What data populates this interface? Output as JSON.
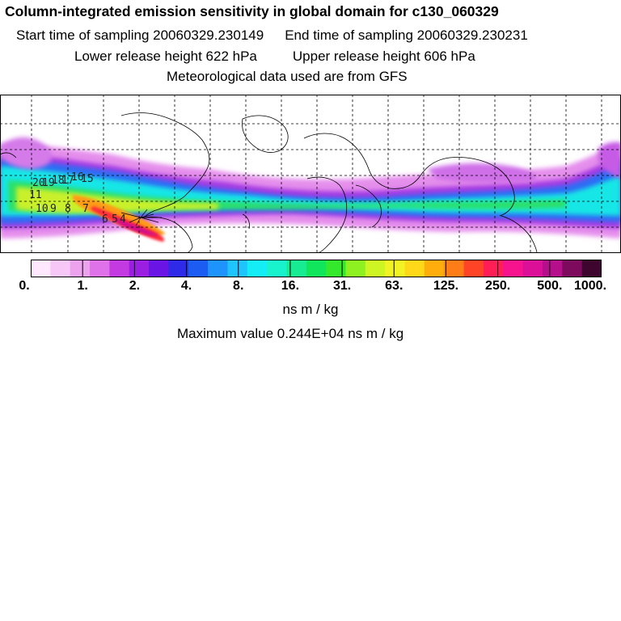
{
  "header": {
    "title": "Column-integrated emission sensitivity in global domain for c130_060329",
    "start_label": "Start time of sampling 20060329.230149",
    "end_label": "End time of sampling 20060329.230231",
    "lower_label": "Lower release height  622 hPa",
    "upper_label": "Upper release height  606 hPa",
    "met_label": "Meteorological data used are from GFS"
  },
  "map": {
    "track_labels": [
      "20",
      "19",
      "18",
      "17",
      "16",
      "15",
      "11",
      "10",
      "9",
      "8",
      "7",
      "6",
      "5",
      "4"
    ]
  },
  "colorbar": {
    "tick_labels": [
      "0.",
      "1.",
      "2.",
      "4.",
      "8.",
      "16.",
      "31.",
      "63.",
      "125.",
      "250.",
      "500.",
      "1000."
    ],
    "unit": "ns m / kg",
    "colors": [
      "#fde8fd",
      "#f7c8f7",
      "#eda2ee",
      "#df72e8",
      "#c33be0",
      "#9a1fe0",
      "#6a14e6",
      "#2f2ae8",
      "#1d5cf2",
      "#1e93fb",
      "#1fc4ff",
      "#14ecf6",
      "#19f3cd",
      "#17ec93",
      "#11e55b",
      "#34e82c",
      "#8ef021",
      "#ccf523",
      "#f2f324",
      "#ffd81a",
      "#ffac0d",
      "#ff7d17",
      "#ff4326",
      "#ff1e55",
      "#f7138d",
      "#db0f98",
      "#b60f8c",
      "#7e0a5e",
      "#3e052f"
    ]
  },
  "max_value": "Maximum value  0.244E+04 ns m / kg"
}
